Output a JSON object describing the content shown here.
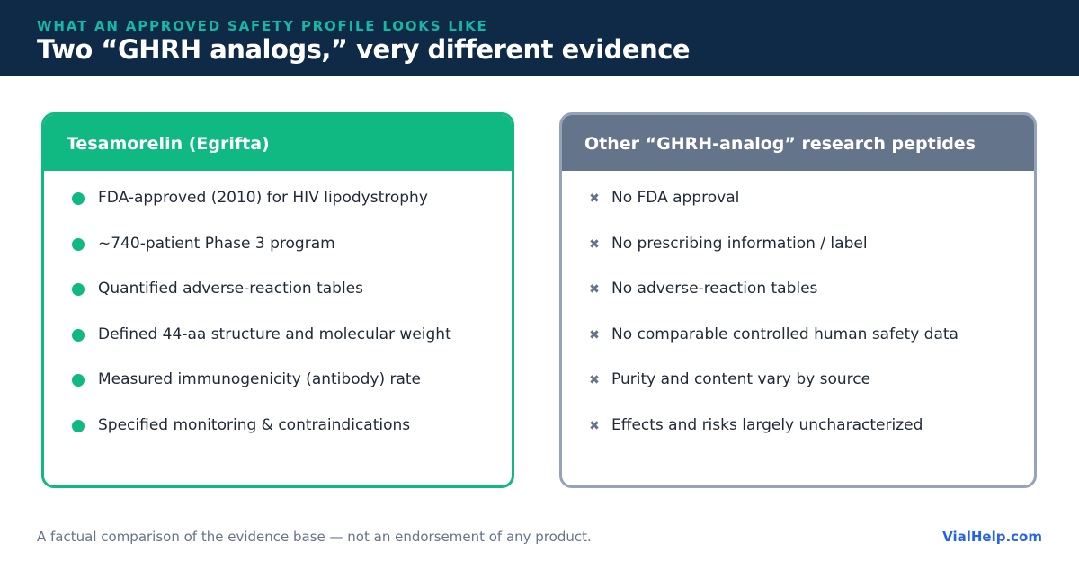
{
  "header": {
    "eyebrow": "WHAT AN APPROVED SAFETY PROFILE LOOKS LIKE",
    "title": "Two “GHRH analogs,” very different evidence"
  },
  "cards": [
    {
      "title": "Tesamorelin (Egrifta)",
      "items": [
        "FDA-approved (2010) for HIV lipodystrophy",
        "~740-patient Phase 3 program",
        "Quantified adverse-reaction tables",
        "Defined 44-aa structure and molecular weight",
        "Measured immunogenicity (antibody) rate",
        "Specified monitoring & contraindications"
      ]
    },
    {
      "title": "Other “GHRH-analog” research peptides",
      "items": [
        "No FDA approval",
        "No prescribing information / label",
        "No adverse-reaction tables",
        "No comparable controlled human safety data",
        "Purity and content vary by source",
        "Effects and risks largely uncharacterized"
      ]
    }
  ],
  "footer": {
    "note": "A factual comparison of the evidence base — not an endorsement of any product.",
    "brand": "VialHelp.com"
  }
}
